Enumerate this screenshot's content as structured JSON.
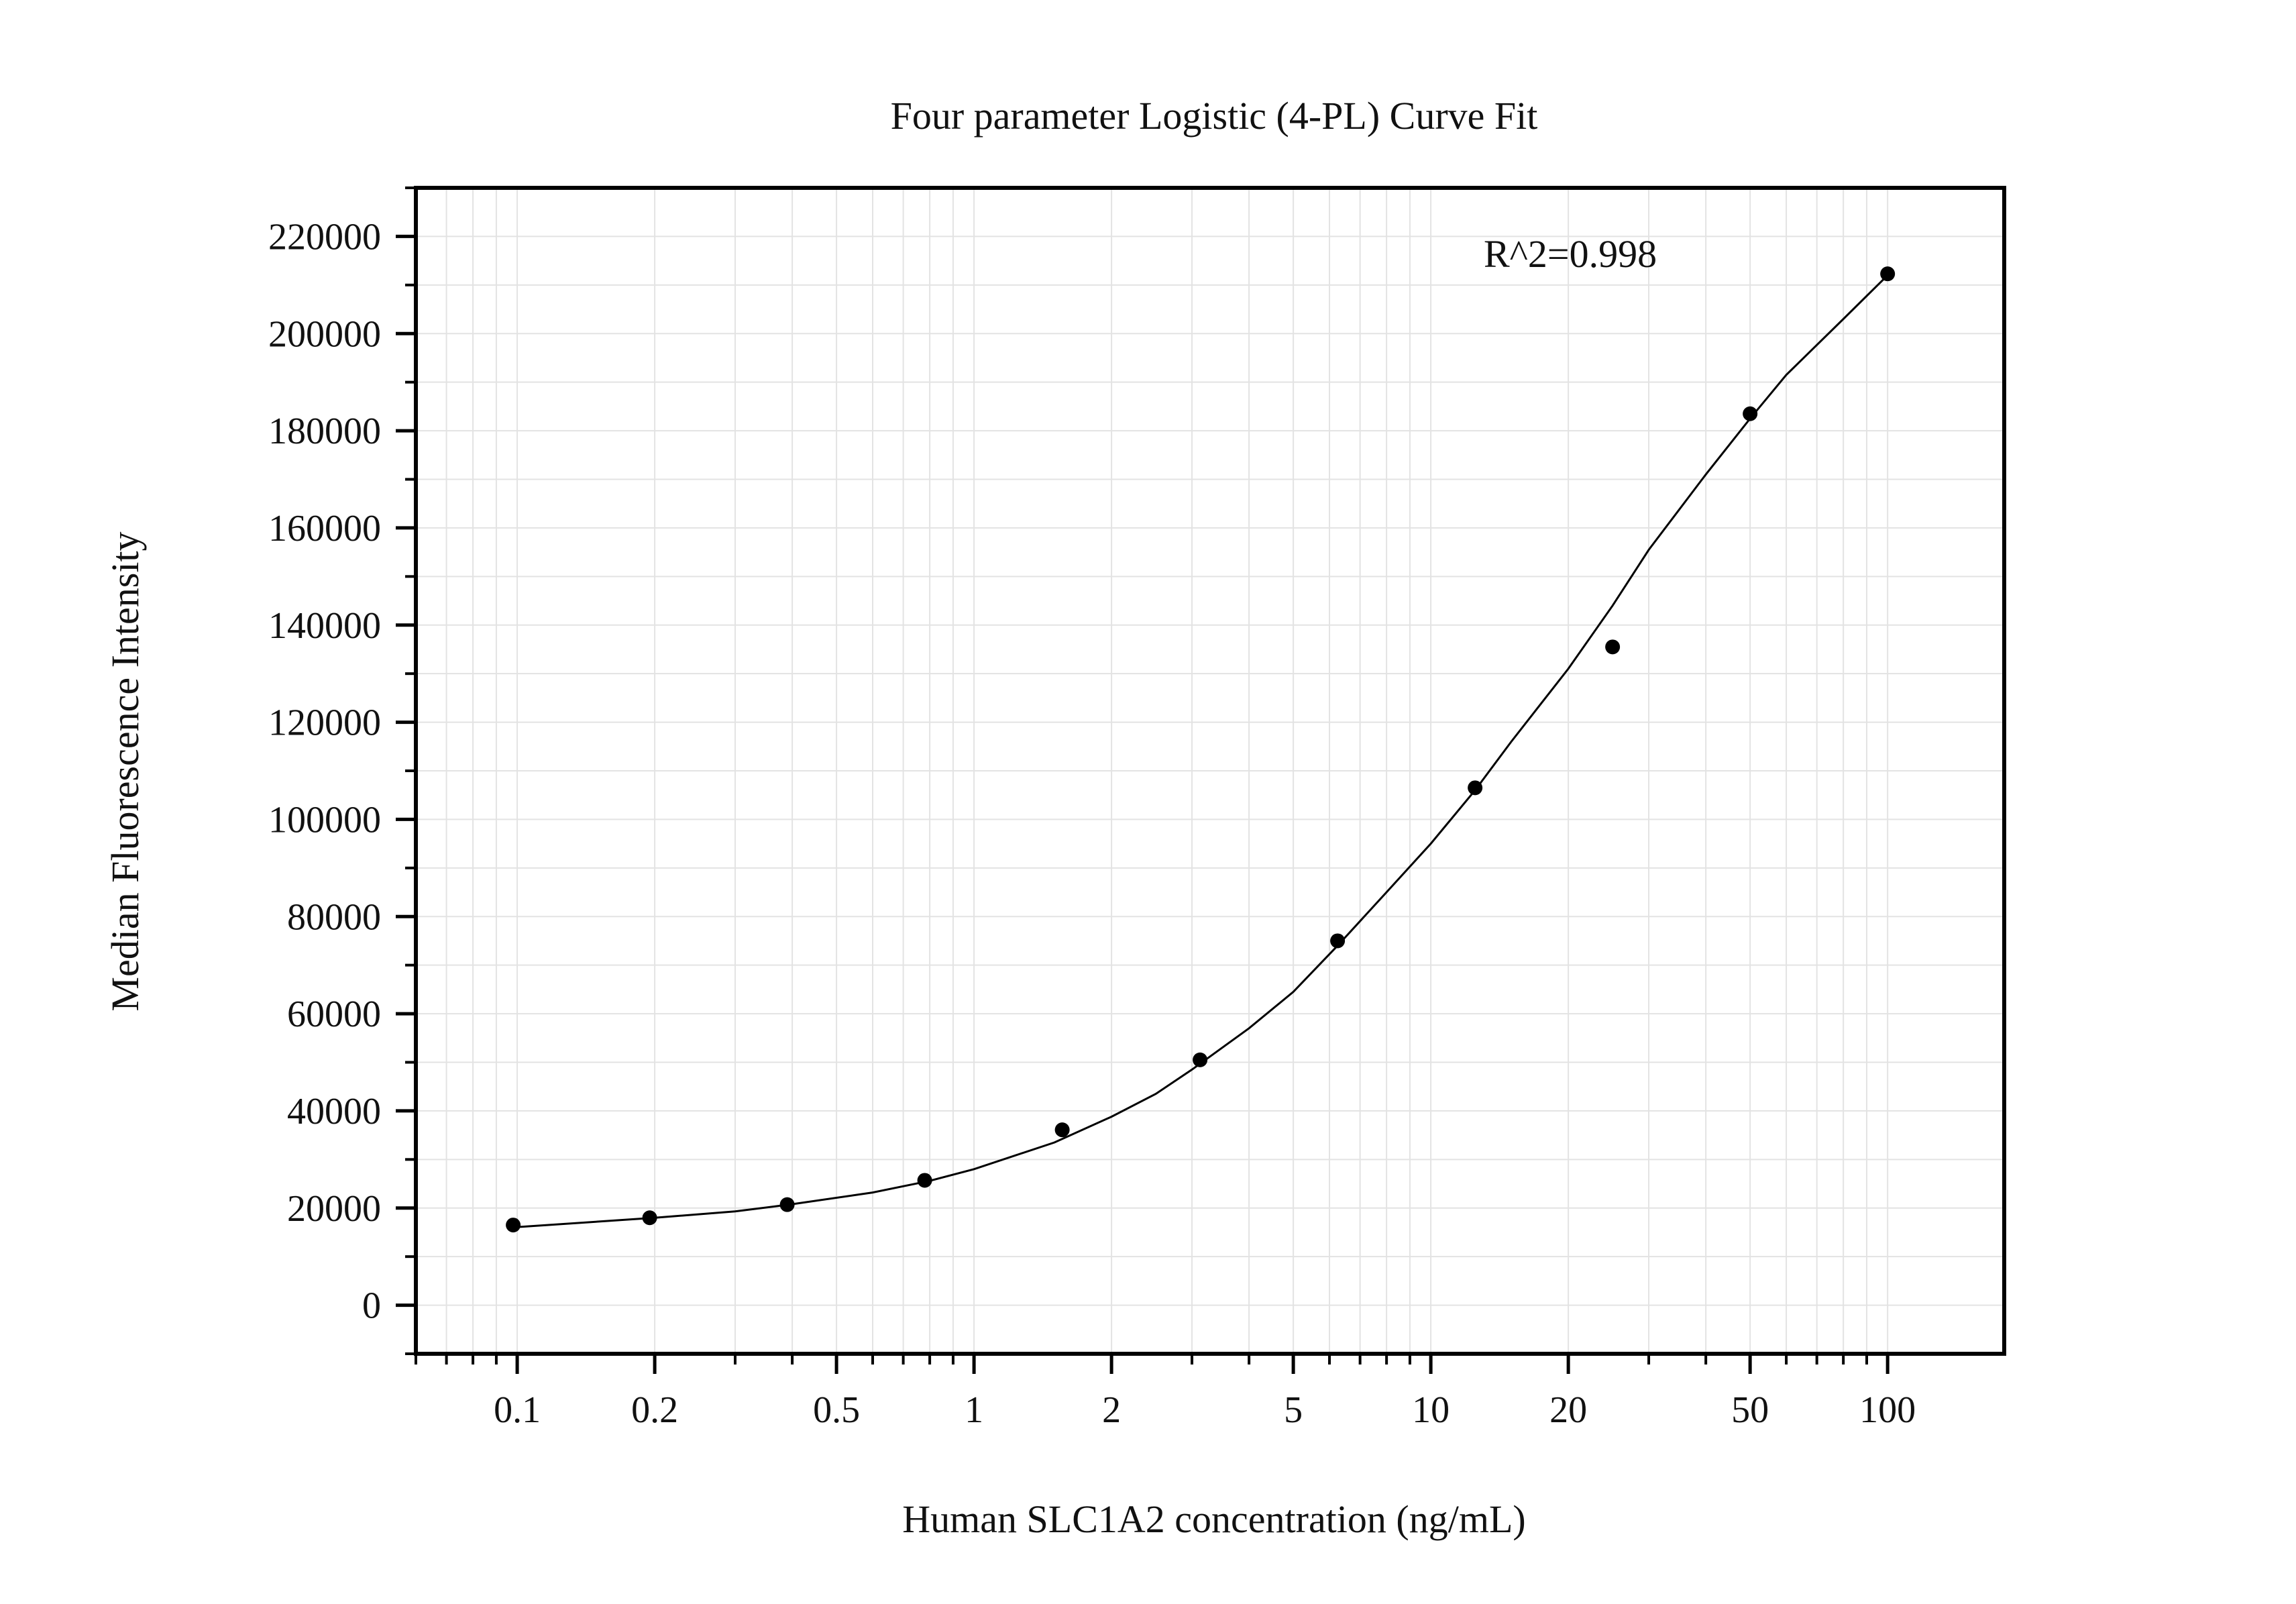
{
  "chart_data": {
    "type": "scatter",
    "title": "Four parameter Logistic (4-PL) Curve Fit",
    "xlabel": "Human SLC1A2 concentration (ng/mL)",
    "ylabel": "Median Fluorescence Intensity",
    "x_scale": "log",
    "xlim": [
      0.06,
      180
    ],
    "ylim": [
      -10000,
      230000
    ],
    "x_ticks": [
      0.1,
      0.2,
      0.5,
      1,
      2,
      5,
      10,
      20,
      50,
      100
    ],
    "x_tick_labels": [
      "0.1",
      "0.2",
      "0.5",
      "1",
      "2",
      "5",
      "10",
      "20",
      "50",
      "100"
    ],
    "y_ticks": [
      0,
      20000,
      40000,
      60000,
      80000,
      100000,
      120000,
      140000,
      160000,
      180000,
      200000,
      220000
    ],
    "y_tick_labels": [
      "0",
      "20000",
      "40000",
      "60000",
      "80000",
      "100000",
      "120000",
      "140000",
      "160000",
      "180000",
      "200000",
      "220000"
    ],
    "grid": true,
    "annotation": "R^2=0.998",
    "points": {
      "x": [
        0.098,
        0.195,
        0.39,
        0.78,
        1.56,
        3.125,
        6.25,
        12.5,
        25,
        50,
        100
      ],
      "y": [
        16500,
        18000,
        20700,
        25700,
        36100,
        50500,
        75000,
        106500,
        135500,
        183500,
        212300
      ]
    },
    "curve": {
      "x": [
        0.097,
        0.15,
        0.2,
        0.3,
        0.4,
        0.6,
        0.8,
        1.0,
        1.5,
        2.0,
        2.5,
        3.0,
        4.0,
        5.0,
        6.25,
        8.0,
        10.0,
        12.5,
        15.0,
        20.0,
        25.0,
        30.0,
        40.0,
        50.0,
        60.0,
        80.0,
        100.0
      ],
      "y": [
        16000,
        17200,
        18000,
        19300,
        20800,
        23200,
        25600,
        28000,
        33500,
        38800,
        43500,
        48500,
        57000,
        64500,
        74000,
        85000,
        95000,
        106000,
        116000,
        131000,
        144000,
        155500,
        171000,
        182500,
        191500,
        203000,
        212000
      ]
    }
  }
}
